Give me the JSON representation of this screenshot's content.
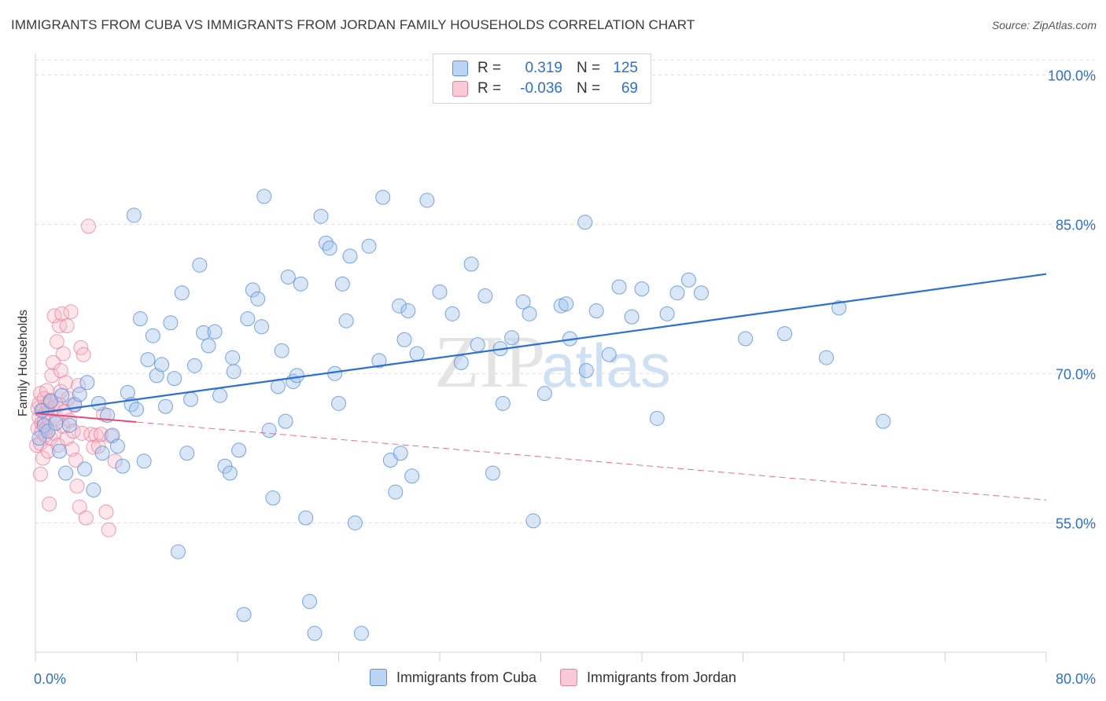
{
  "title": "IMMIGRANTS FROM CUBA VS IMMIGRANTS FROM JORDAN FAMILY HOUSEHOLDS CORRELATION CHART",
  "source": "Source: ZipAtlas.com",
  "watermark": {
    "zip": "ZIP",
    "atlas": "atlas"
  },
  "legend": {
    "rows": [
      {
        "r_label": "R =",
        "r_value": "0.319",
        "n_label": "N =",
        "n_value": "125"
      },
      {
        "r_label": "R =",
        "r_value": "-0.036",
        "n_label": "N =",
        "n_value": "69"
      }
    ]
  },
  "colors": {
    "cuba_fill": "#a9c7ef",
    "cuba_stroke": "#5b8fd6",
    "cuba_line": "#2b6fcf",
    "jordan_fill": "#f7b6c8",
    "jordan_stroke": "#e77fa0",
    "jordan_line": "#e24a7e",
    "tick_label": "#2f6fce",
    "grid": "#dcdcdc"
  },
  "chart_data": {
    "type": "scatter",
    "title": "IMMIGRANTS FROM CUBA VS IMMIGRANTS FROM JORDAN FAMILY HOUSEHOLDS CORRELATION CHART",
    "xlabel": "",
    "ylabel": "Family Households",
    "xlim": [
      0,
      80
    ],
    "ylim": [
      42,
      102
    ],
    "x_tick_labels": [
      "0.0%",
      "80.0%"
    ],
    "y_ticks": [
      55,
      70,
      85,
      100
    ],
    "y_tick_labels": [
      "55.0%",
      "70.0%",
      "85.0%",
      "100.0%"
    ],
    "grid": "horizontal dashed",
    "legend_position": "bottom",
    "series": [
      {
        "name": "Immigrants from Cuba",
        "r": 0.319,
        "n": 125,
        "trend": {
          "x": [
            0,
            80
          ],
          "y": [
            66.0,
            80.0
          ]
        },
        "points": [
          [
            0.3,
            63.5
          ],
          [
            0.5,
            66.3
          ],
          [
            0.7,
            64.8
          ],
          [
            1.0,
            64.2
          ],
          [
            1.2,
            67.2
          ],
          [
            1.6,
            65.0
          ],
          [
            1.9,
            62.2
          ],
          [
            2.1,
            67.8
          ],
          [
            2.4,
            60.0
          ],
          [
            2.7,
            64.8
          ],
          [
            3.1,
            66.9
          ],
          [
            3.5,
            67.9
          ],
          [
            3.9,
            60.4
          ],
          [
            4.1,
            69.1
          ],
          [
            4.6,
            58.3
          ],
          [
            5.0,
            67.0
          ],
          [
            5.3,
            62.0
          ],
          [
            5.7,
            65.8
          ],
          [
            6.1,
            63.8
          ],
          [
            6.5,
            62.7
          ],
          [
            6.9,
            60.7
          ],
          [
            7.3,
            68.1
          ],
          [
            7.6,
            66.9
          ],
          [
            8.0,
            66.4
          ],
          [
            8.3,
            75.5
          ],
          [
            8.6,
            61.2
          ],
          [
            8.9,
            71.4
          ],
          [
            9.3,
            73.8
          ],
          [
            9.6,
            69.8
          ],
          [
            10.0,
            70.9
          ],
          [
            10.3,
            66.7
          ],
          [
            10.7,
            75.1
          ],
          [
            11.0,
            69.5
          ],
          [
            11.3,
            52.1
          ],
          [
            11.6,
            78.1
          ],
          [
            12.0,
            62.0
          ],
          [
            12.3,
            67.4
          ],
          [
            12.6,
            70.8
          ],
          [
            13.0,
            80.9
          ],
          [
            13.3,
            74.1
          ],
          [
            13.7,
            72.8
          ],
          [
            14.2,
            74.2
          ],
          [
            14.6,
            67.8
          ],
          [
            15.0,
            60.7
          ],
          [
            15.4,
            60.0
          ],
          [
            15.7,
            70.2
          ],
          [
            16.1,
            62.3
          ],
          [
            16.5,
            45.8
          ],
          [
            16.8,
            75.5
          ],
          [
            17.2,
            78.4
          ],
          [
            17.6,
            77.5
          ],
          [
            17.9,
            74.7
          ],
          [
            18.1,
            87.8
          ],
          [
            18.5,
            64.3
          ],
          [
            18.8,
            57.5
          ],
          [
            19.2,
            68.7
          ],
          [
            19.5,
            72.3
          ],
          [
            19.8,
            65.2
          ],
          [
            20.0,
            79.7
          ],
          [
            20.4,
            69.2
          ],
          [
            20.7,
            69.8
          ],
          [
            21.0,
            79.0
          ],
          [
            21.4,
            55.5
          ],
          [
            21.7,
            47.1
          ],
          [
            22.1,
            43.9
          ],
          [
            22.6,
            85.8
          ],
          [
            23.0,
            83.1
          ],
          [
            23.3,
            82.6
          ],
          [
            23.7,
            70.0
          ],
          [
            24.0,
            67.0
          ],
          [
            24.3,
            79.0
          ],
          [
            24.6,
            75.3
          ],
          [
            24.9,
            81.8
          ],
          [
            25.3,
            55.0
          ],
          [
            25.8,
            43.9
          ],
          [
            26.4,
            82.8
          ],
          [
            27.2,
            71.3
          ],
          [
            27.5,
            87.7
          ],
          [
            28.1,
            61.3
          ],
          [
            28.5,
            58.1
          ],
          [
            28.8,
            76.8
          ],
          [
            29.2,
            73.4
          ],
          [
            29.5,
            76.3
          ],
          [
            29.8,
            59.7
          ],
          [
            30.2,
            72.0
          ],
          [
            31.0,
            87.4
          ],
          [
            32.0,
            78.2
          ],
          [
            33.0,
            76.0
          ],
          [
            33.7,
            71.1
          ],
          [
            34.5,
            81.0
          ],
          [
            35.0,
            72.9
          ],
          [
            35.6,
            77.8
          ],
          [
            36.2,
            60.0
          ],
          [
            37.0,
            67.0
          ],
          [
            37.7,
            73.6
          ],
          [
            38.6,
            77.2
          ],
          [
            39.1,
            76.0
          ],
          [
            39.4,
            55.2
          ],
          [
            40.3,
            68.0
          ],
          [
            41.6,
            76.8
          ],
          [
            42.0,
            77.0
          ],
          [
            42.3,
            73.5
          ],
          [
            43.5,
            85.2
          ],
          [
            44.4,
            76.3
          ],
          [
            45.4,
            71.9
          ],
          [
            46.2,
            78.7
          ],
          [
            47.2,
            75.7
          ],
          [
            48.0,
            78.5
          ],
          [
            49.2,
            65.5
          ],
          [
            50.0,
            76.0
          ],
          [
            50.8,
            78.1
          ],
          [
            51.7,
            79.4
          ],
          [
            52.7,
            78.1
          ],
          [
            56.2,
            73.5
          ],
          [
            59.3,
            74.0
          ],
          [
            62.6,
            71.6
          ],
          [
            63.6,
            76.6
          ],
          [
            67.1,
            65.2
          ],
          [
            43.6,
            70.3
          ],
          [
            7.8,
            85.9
          ],
          [
            36.8,
            72.5
          ],
          [
            28.9,
            62.0
          ],
          [
            15.6,
            71.6
          ]
        ]
      },
      {
        "name": "Immigrants from Jordan",
        "r": -0.036,
        "n": 69,
        "trend": {
          "x": [
            0,
            80
          ],
          "y": [
            66.0,
            57.3
          ]
        },
        "trend_solid_x": [
          0,
          8
        ],
        "points": [
          [
            0.1,
            62.8
          ],
          [
            0.2,
            64.5
          ],
          [
            0.2,
            66.5
          ],
          [
            0.3,
            67.0
          ],
          [
            0.3,
            65.6
          ],
          [
            0.4,
            68.0
          ],
          [
            0.4,
            63.0
          ],
          [
            0.5,
            65.0
          ],
          [
            0.5,
            64.2
          ],
          [
            0.6,
            66.3
          ],
          [
            0.6,
            61.5
          ],
          [
            0.7,
            67.5
          ],
          [
            0.7,
            65.2
          ],
          [
            0.8,
            63.8
          ],
          [
            0.8,
            66.0
          ],
          [
            0.9,
            68.3
          ],
          [
            0.9,
            64.5
          ],
          [
            1.0,
            62.2
          ],
          [
            1.0,
            66.8
          ],
          [
            1.1,
            65.5
          ],
          [
            1.2,
            67.3
          ],
          [
            1.2,
            63.5
          ],
          [
            1.3,
            69.8
          ],
          [
            1.4,
            66.5
          ],
          [
            1.4,
            71.1
          ],
          [
            1.5,
            64.0
          ],
          [
            1.5,
            75.8
          ],
          [
            1.6,
            67.0
          ],
          [
            1.7,
            73.2
          ],
          [
            1.7,
            65.5
          ],
          [
            1.8,
            62.8
          ],
          [
            1.9,
            66.9
          ],
          [
            1.9,
            74.8
          ],
          [
            2.0,
            68.2
          ],
          [
            2.0,
            70.3
          ],
          [
            2.1,
            76.0
          ],
          [
            2.2,
            64.7
          ],
          [
            2.2,
            72.0
          ],
          [
            2.3,
            66.2
          ],
          [
            2.4,
            69.1
          ],
          [
            2.5,
            74.8
          ],
          [
            2.5,
            63.5
          ],
          [
            2.6,
            67.5
          ],
          [
            2.7,
            65.3
          ],
          [
            2.8,
            76.2
          ],
          [
            2.9,
            62.4
          ],
          [
            3.0,
            64.2
          ],
          [
            3.1,
            66.8
          ],
          [
            3.2,
            61.3
          ],
          [
            3.3,
            58.7
          ],
          [
            3.4,
            68.8
          ],
          [
            3.5,
            56.6
          ],
          [
            3.6,
            72.6
          ],
          [
            3.7,
            64.0
          ],
          [
            3.8,
            71.9
          ],
          [
            4.0,
            55.5
          ],
          [
            4.2,
            84.8
          ],
          [
            4.4,
            63.9
          ],
          [
            4.6,
            62.6
          ],
          [
            4.8,
            63.8
          ],
          [
            5.0,
            62.7
          ],
          [
            5.2,
            63.9
          ],
          [
            5.4,
            65.9
          ],
          [
            5.6,
            56.1
          ],
          [
            5.8,
            54.3
          ],
          [
            6.0,
            63.7
          ],
          [
            6.3,
            61.2
          ],
          [
            0.4,
            59.9
          ],
          [
            1.1,
            56.9
          ]
        ]
      }
    ]
  }
}
